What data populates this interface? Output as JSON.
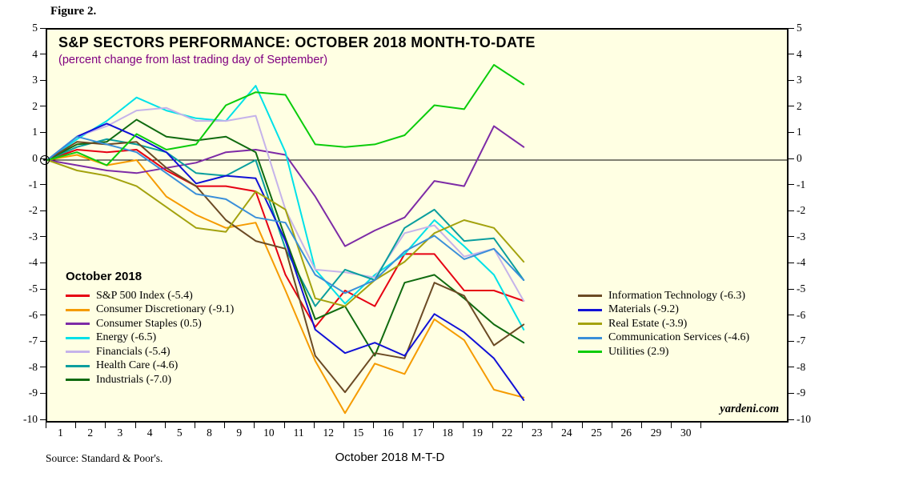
{
  "figure_label": "Figure 2.",
  "chart_data": {
    "type": "line",
    "title": "S&P SECTORS PERFORMANCE: OCTOBER 2018 MONTH-TO-DATE",
    "subtitle": "(percent change from last trading day of September)",
    "subtitle_color": "#800080",
    "background_color": "#FFFFE3",
    "legend_header": "October 2018",
    "branding": "yardeni.com",
    "xlabel": "October 2018 M-T-D",
    "source": "Source: Standard & Poor's.",
    "grid": false,
    "zero_line": true,
    "ylim": [
      -10,
      5
    ],
    "y_ticks": [
      5,
      4,
      3,
      2,
      1,
      0,
      -1,
      -2,
      -3,
      -4,
      -5,
      -6,
      -7,
      -8,
      -9,
      -10
    ],
    "x_tick_labels": [
      "1",
      "2",
      "3",
      "4",
      "5",
      "8",
      "9",
      "10",
      "11",
      "12",
      "15",
      "16",
      "17",
      "18",
      "19",
      "22",
      "23",
      "24",
      "25",
      "26",
      "29",
      "30"
    ],
    "x_note": "series start at 0 on the axis (last trading day of September) and plot through October 22",
    "legend_position": "inside lower-left and lower-middle, two columns",
    "series": [
      {
        "name": "S&P 500 Index",
        "legend_label": "S&P 500 Index (-5.4)",
        "final_value": -5.4,
        "color": "#E60012",
        "column": 1,
        "values": [
          0,
          0.4,
          0.3,
          0.4,
          -0.4,
          -1.0,
          -1.0,
          -1.2,
          -4.4,
          -6.4,
          -5.0,
          -5.6,
          -3.6,
          -3.6,
          -5.0,
          -5.0,
          -5.4
        ]
      },
      {
        "name": "Consumer Discretionary",
        "legend_label": "Consumer Discretionary (-9.1)",
        "final_value": -9.1,
        "color": "#F59B00",
        "column": 1,
        "values": [
          0,
          0.2,
          -0.2,
          0.0,
          -1.4,
          -2.1,
          -2.6,
          -2.4,
          -5.0,
          -7.7,
          -9.7,
          -7.8,
          -8.2,
          -6.1,
          -6.9,
          -8.8,
          -9.1
        ]
      },
      {
        "name": "Consumer Staples",
        "legend_label": "Consumer Staples (0.5)",
        "final_value": 0.5,
        "color": "#7D2BA6",
        "column": 1,
        "values": [
          0,
          -0.2,
          -0.4,
          -0.5,
          -0.3,
          -0.1,
          0.3,
          0.4,
          0.2,
          -1.4,
          -3.3,
          -2.7,
          -2.2,
          -0.8,
          -1.0,
          1.3,
          0.5
        ]
      },
      {
        "name": "Energy",
        "legend_label": "Energy (-6.5)",
        "final_value": -6.5,
        "color": "#00E1E8",
        "column": 1,
        "values": [
          0,
          0.8,
          1.5,
          2.4,
          1.9,
          1.6,
          1.5,
          2.85,
          0.3,
          -4.2,
          -5.5,
          -4.4,
          -3.6,
          -2.3,
          -3.3,
          -4.4,
          -6.5
        ]
      },
      {
        "name": "Financials",
        "legend_label": "Financials (-5.4)",
        "final_value": -5.4,
        "color": "#C5B3EA",
        "column": 1,
        "values": [
          0,
          0.9,
          1.3,
          1.9,
          2.0,
          1.5,
          1.5,
          1.7,
          -1.9,
          -4.2,
          -4.3,
          -4.5,
          -2.8,
          -2.5,
          -3.7,
          -3.4,
          -5.4
        ]
      },
      {
        "name": "Health Care",
        "legend_label": "Health Care (-4.6)",
        "final_value": -4.6,
        "color": "#0A9E9E",
        "column": 1,
        "values": [
          0,
          0.5,
          0.8,
          0.6,
          0.3,
          -0.5,
          -0.6,
          0.0,
          -3.4,
          -5.6,
          -4.2,
          -4.6,
          -2.6,
          -1.9,
          -3.1,
          -3.0,
          -4.6
        ]
      },
      {
        "name": "Industrials",
        "legend_label": "Industrials (-7.0)",
        "final_value": -7.0,
        "color": "#106B10",
        "column": 1,
        "values": [
          0,
          0.6,
          0.7,
          1.55,
          0.9,
          0.75,
          0.9,
          0.3,
          -3.0,
          -6.1,
          -5.6,
          -7.5,
          -4.7,
          -4.4,
          -5.3,
          -6.3,
          -7.0
        ]
      },
      {
        "name": "Information Technology",
        "legend_label": "Information Technology (-6.3)",
        "final_value": -6.3,
        "color": "#6B4A24",
        "column": 2,
        "values": [
          0,
          0.7,
          0.6,
          0.7,
          -0.3,
          -1.0,
          -2.3,
          -3.1,
          -3.4,
          -7.5,
          -8.9,
          -7.4,
          -7.6,
          -4.7,
          -5.2,
          -7.1,
          -6.3
        ]
      },
      {
        "name": "Materials",
        "legend_label": "Materials (-9.2)",
        "final_value": -9.2,
        "color": "#1111D6",
        "column": 2,
        "values": [
          0,
          0.9,
          1.4,
          0.9,
          0.3,
          -0.9,
          -0.6,
          -0.7,
          -3.1,
          -6.5,
          -7.4,
          -7.0,
          -7.5,
          -5.9,
          -6.6,
          -7.6,
          -9.2
        ]
      },
      {
        "name": "Real Estate",
        "legend_label": "Real Estate (-3.9)",
        "final_value": -3.9,
        "color": "#A3A20E",
        "column": 2,
        "values": [
          0,
          -0.4,
          -0.6,
          -1.0,
          -1.8,
          -2.6,
          -2.75,
          -1.2,
          -1.9,
          -5.3,
          -5.6,
          -4.6,
          -3.9,
          -2.8,
          -2.3,
          -2.6,
          -3.9
        ]
      },
      {
        "name": "Communication Services",
        "legend_label": "Communication Services (-4.6)",
        "final_value": -4.6,
        "color": "#3A8FD9",
        "column": 2,
        "values": [
          0,
          0.9,
          0.6,
          0.3,
          -0.5,
          -1.3,
          -1.5,
          -2.2,
          -2.4,
          -4.4,
          -5.1,
          -4.6,
          -3.5,
          -2.9,
          -3.8,
          -3.4,
          -4.6
        ]
      },
      {
        "name": "Utilities",
        "legend_label": "Utilities (2.9)",
        "final_value": 2.9,
        "color": "#0BCC0B",
        "column": 2,
        "values": [
          0,
          0.3,
          -0.2,
          1.0,
          0.4,
          0.6,
          2.1,
          2.6,
          2.5,
          0.6,
          0.5,
          0.6,
          0.95,
          2.1,
          1.95,
          3.65,
          2.9
        ]
      }
    ]
  }
}
